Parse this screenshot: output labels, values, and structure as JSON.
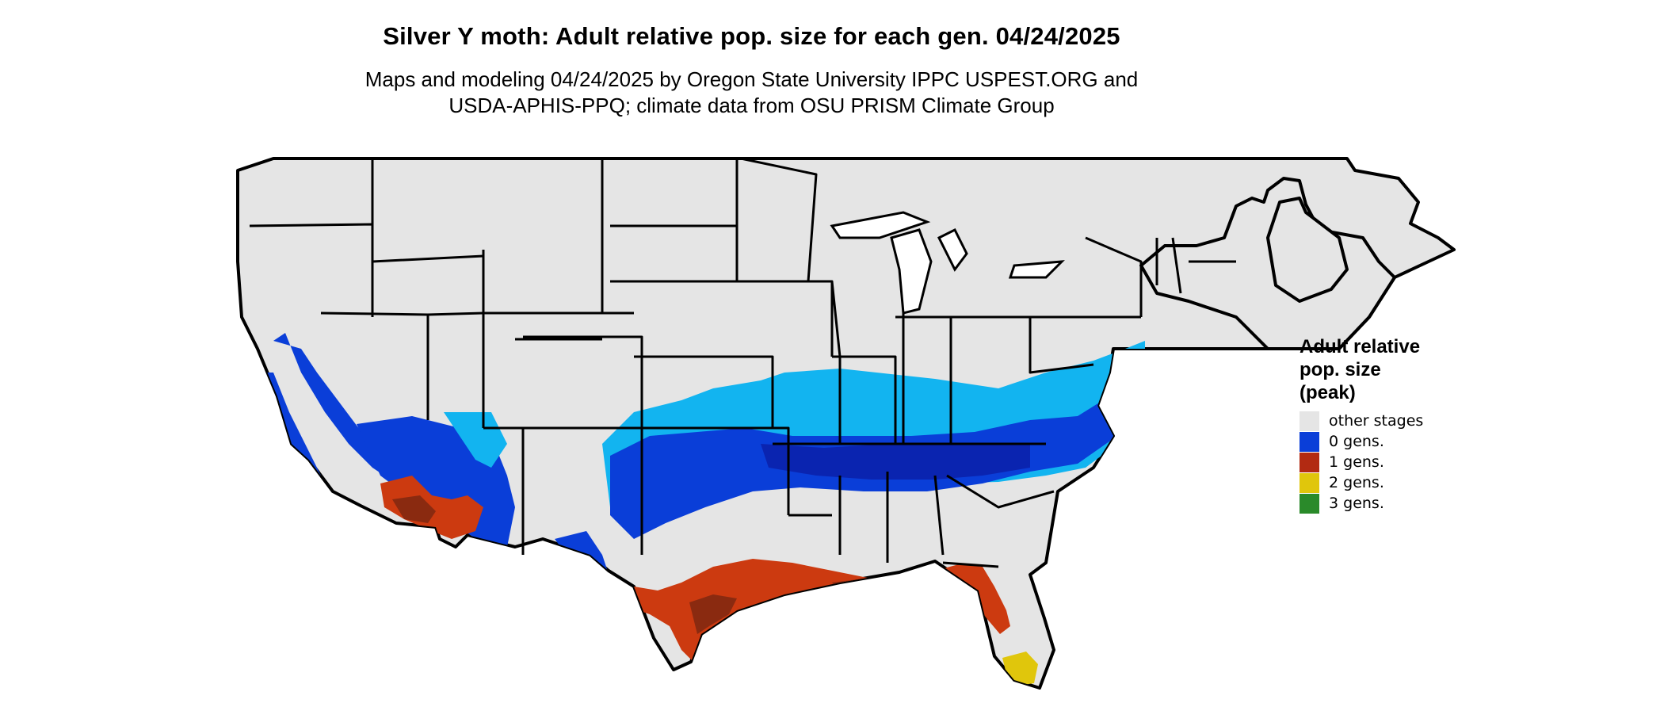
{
  "title": "Silver Y moth: Adult relative pop. size for each gen. 04/24/2025",
  "subtitle": {
    "line1": "Maps and modeling 04/24/2025 by Oregon State University IPPC USPEST.ORG and",
    "line2": "USDA-APHIS-PPQ; climate data from OSU PRISM Climate Group"
  },
  "legend": {
    "title_lines": [
      "Adult relative",
      "pop. size",
      "(peak)"
    ],
    "items": [
      {
        "label": "other stages",
        "color": "#e5e5e5"
      },
      {
        "label": "0 gens.",
        "color": "#0a3ed8"
      },
      {
        "label": "1 gens.",
        "color": "#b22a12"
      },
      {
        "label": "2 gens.",
        "color": "#e0c60c"
      },
      {
        "label": "3 gens.",
        "color": "#2a8a2a"
      }
    ]
  },
  "map_colors": {
    "land": "#e5e5e5",
    "border": "#000000",
    "light_blue": "#12b4f0",
    "blue": "#0a3ed8",
    "dark_blue": "#0a24b0",
    "red": "#cc3a10",
    "dark_red": "#8a2a10",
    "yellow": "#e0c60c"
  }
}
